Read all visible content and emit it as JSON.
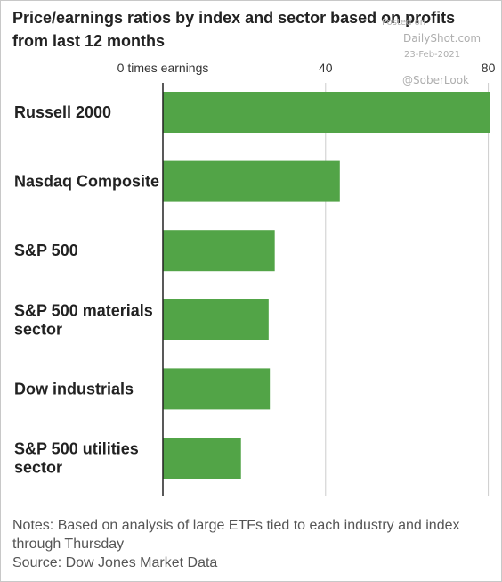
{
  "header": {
    "title": "Price/earnings ratios by index and sector based on profits from last 12 months"
  },
  "watermark": {
    "posted": "Posted on",
    "site": "DailyShot.com",
    "date": "23-Feb-2021",
    "handle": "@SoberLook"
  },
  "footer": {
    "notes": "Notes: Based on analysis of large ETFs tied to each industry and index through Thursday",
    "source": "Source: Dow Jones Market Data"
  },
  "colors": {
    "bar": "#52a447",
    "axis": "#222222",
    "grid": "#cccccc"
  },
  "chart_data": {
    "type": "bar",
    "orientation": "horizontal",
    "categories": [
      [
        "Russell 2000"
      ],
      [
        "Nasdaq Composite"
      ],
      [
        "S&P 500"
      ],
      [
        "S&P 500 materials",
        "sector"
      ],
      [
        "Dow industrials"
      ],
      [
        "S&P 500 utilities",
        "sector"
      ]
    ],
    "values": [
      80.5,
      43.5,
      27.5,
      26,
      26.3,
      19.2
    ],
    "xlim": [
      0,
      80
    ],
    "ticks": [
      {
        "value": 0,
        "label": "0 times earnings"
      },
      {
        "value": 40,
        "label": "40"
      },
      {
        "value": 80,
        "label": "80"
      }
    ],
    "grid": true
  }
}
